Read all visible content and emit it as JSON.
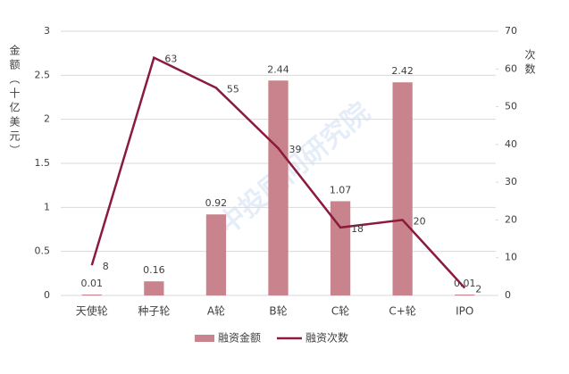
{
  "chart_data": {
    "type": "bar",
    "categories": [
      "天使轮",
      "种子轮",
      "A轮",
      "B轮",
      "C轮",
      "C+轮",
      "IPO"
    ],
    "series": [
      {
        "name": "融资金额",
        "type": "bar",
        "color": "#c9838c",
        "values": [
          0.01,
          0.16,
          0.92,
          2.44,
          1.07,
          2.42,
          0.01
        ]
      },
      {
        "name": "融资次数",
        "type": "line",
        "axis": "y2",
        "color": "#8b1a3c",
        "values": [
          8,
          63,
          55,
          39,
          18,
          20,
          2
        ]
      }
    ],
    "ylabel": "金额（十亿美元）",
    "y2label": "次数",
    "ylim": [
      0,
      3
    ],
    "yticks": [
      0,
      0.5,
      1,
      1.5,
      2,
      2.5,
      3
    ],
    "y2lim": [
      0,
      70
    ],
    "y2ticks": [
      0,
      10,
      20,
      30,
      40,
      50,
      60,
      70
    ],
    "grid": true,
    "legend": "bottom",
    "watermark": "中投顾问研究院"
  }
}
